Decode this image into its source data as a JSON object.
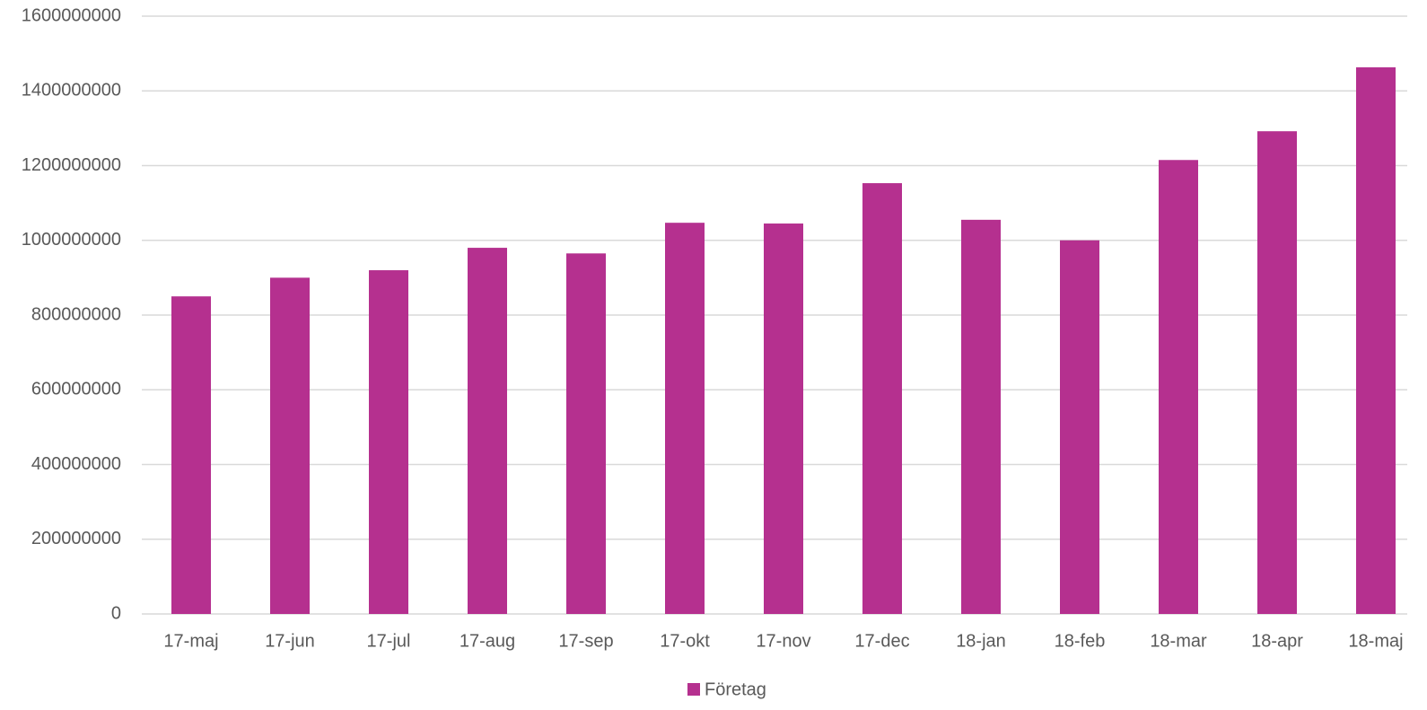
{
  "chart_data": {
    "type": "bar",
    "categories": [
      "17-maj",
      "17-jun",
      "17-jul",
      "17-aug",
      "17-sep",
      "17-okt",
      "17-nov",
      "17-dec",
      "18-jan",
      "18-feb",
      "18-mar",
      "18-apr",
      "18-maj"
    ],
    "series": [
      {
        "name": "Företag",
        "color": "#b5308f",
        "values": [
          850000000,
          900000000,
          920000000,
          980000000,
          965000000,
          1047000000,
          1045000000,
          1153000000,
          1055000000,
          1000000000,
          1215000000,
          1292000000,
          1463000000
        ]
      }
    ],
    "ylim": [
      0,
      1600000000
    ],
    "yticks": [
      0,
      200000000,
      400000000,
      600000000,
      800000000,
      1000000000,
      1200000000,
      1400000000,
      1600000000
    ],
    "grid": true,
    "legend": "bottom"
  }
}
